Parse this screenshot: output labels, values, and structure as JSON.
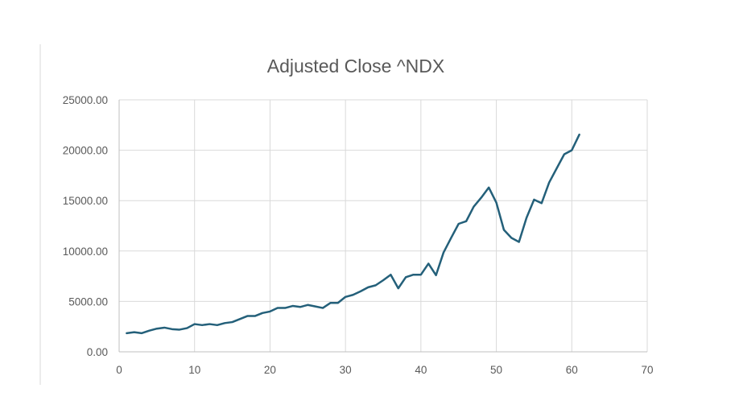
{
  "colors": {
    "series": "#24607a",
    "grid": "#d9d9d9",
    "text": "#595959"
  },
  "chart_data": {
    "type": "line",
    "title": "Adjusted Close ^NDX",
    "xlabel": "",
    "ylabel": "",
    "xlim": [
      0,
      70
    ],
    "ylim": [
      0,
      25000
    ],
    "x_ticks": [
      "0",
      "10",
      "20",
      "30",
      "40",
      "50",
      "60",
      "70"
    ],
    "y_ticks": [
      "0.00",
      "5000.00",
      "10000.00",
      "15000.00",
      "20000.00",
      "25000.00"
    ],
    "grid": true,
    "legend": "none",
    "x": [
      1,
      2,
      3,
      4,
      5,
      6,
      7,
      8,
      9,
      10,
      11,
      12,
      13,
      14,
      15,
      16,
      17,
      18,
      19,
      20,
      21,
      22,
      23,
      24,
      25,
      26,
      27,
      28,
      29,
      30,
      31,
      32,
      33,
      34,
      35,
      36,
      37,
      38,
      39,
      40,
      41,
      42,
      43,
      44,
      45,
      46,
      47,
      48,
      49,
      50,
      51,
      52,
      53,
      54,
      55,
      56,
      57,
      58,
      59,
      60,
      61
    ],
    "series": [
      {
        "values": [
          1850,
          1950,
          1850,
          2100,
          2300,
          2400,
          2250,
          2200,
          2350,
          2750,
          2650,
          2750,
          2650,
          2850,
          2950,
          3250,
          3550,
          3550,
          3850,
          4000,
          4350,
          4350,
          4550,
          4450,
          4650,
          4500,
          4350,
          4850,
          4850,
          5450,
          5650,
          6000,
          6400,
          6600,
          7100,
          7650,
          6300,
          7400,
          7650,
          7650,
          8750,
          7600,
          9850,
          11300,
          12700,
          12950,
          14400,
          15300,
          16300,
          14800,
          12100,
          11300,
          10900,
          13300,
          15100,
          14750,
          16800,
          18200,
          19600,
          20000,
          21550
        ]
      }
    ]
  }
}
